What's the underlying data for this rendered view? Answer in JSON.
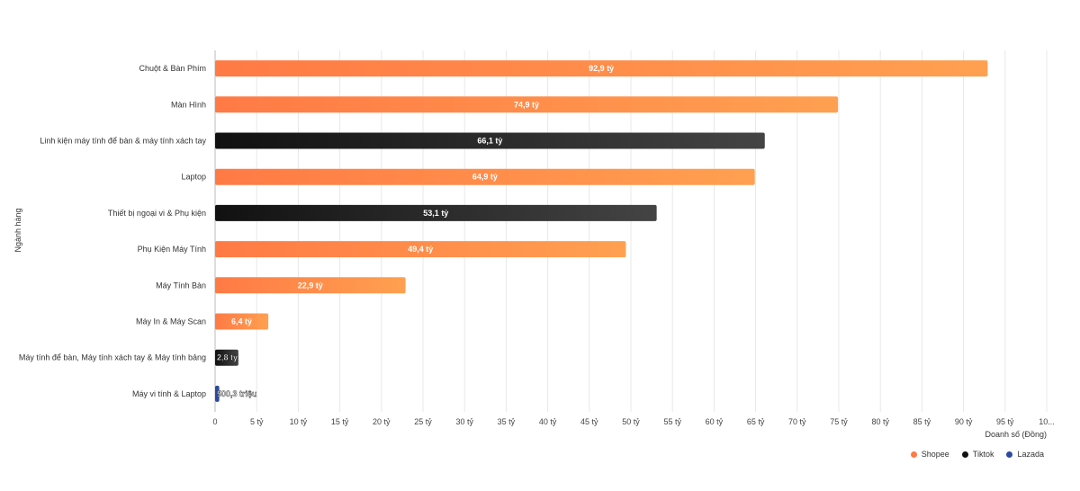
{
  "chart_data": {
    "type": "bar",
    "orientation": "horizontal",
    "title": "",
    "xlabel": "Doanh số (Đồng)",
    "ylabel": "Ngành hàng",
    "xlim": [
      0,
      100
    ],
    "x_unit": "tỷ",
    "x_ticks": [
      "0",
      "5 tỷ",
      "10 tỷ",
      "15 tỷ",
      "20 tỷ",
      "25 tỷ",
      "30 tỷ",
      "35 tỷ",
      "40 tỷ",
      "45 tỷ",
      "50 tỷ",
      "55 tỷ",
      "60 tỷ",
      "65 tỷ",
      "70 tỷ",
      "75 tỷ",
      "80 tỷ",
      "85 tỷ",
      "90 tỷ",
      "95 tỷ",
      "10..."
    ],
    "grid": "vertical",
    "legend_placement": "bottom-right",
    "series": [
      {
        "name": "Shopee",
        "color": "#ff7a45",
        "color_end": "#ffa050"
      },
      {
        "name": "Tiktok",
        "color": "#111111",
        "color_end": "#444444"
      },
      {
        "name": "Lazada",
        "color": "#2c4a9e",
        "color_end": "#2c4a9e"
      }
    ],
    "bars": [
      {
        "category": "Chuột & Bàn Phím",
        "value": 92.9,
        "series": "Shopee",
        "label": "92,9 tỷ"
      },
      {
        "category": "Màn Hình",
        "value": 74.9,
        "series": "Shopee",
        "label": "74,9 tỷ"
      },
      {
        "category": "Linh kiện máy tính để bàn & máy tính xách tay",
        "value": 66.1,
        "series": "Tiktok",
        "label": "66,1 tỷ"
      },
      {
        "category": "Laptop",
        "value": 64.9,
        "series": "Shopee",
        "label": "64,9 tỷ"
      },
      {
        "category": "Thiết bị ngoại vi & Phụ kiện",
        "value": 53.1,
        "series": "Tiktok",
        "label": "53,1 tỷ"
      },
      {
        "category": "Phụ Kiện Máy Tính",
        "value": 49.4,
        "series": "Shopee",
        "label": "49,4 tỷ"
      },
      {
        "category": "Máy Tính Bàn",
        "value": 22.9,
        "series": "Shopee",
        "label": "22,9 tỷ"
      },
      {
        "category": "Máy In & Máy Scan",
        "value": 6.4,
        "series": "Shopee",
        "label": "6,4 tỷ"
      },
      {
        "category": "Máy tính để bàn, Máy tính xách tay & Máy tính bảng",
        "value": 2.8,
        "series": "Tiktok",
        "label": "2,8 tỷ"
      },
      {
        "category": "Máy vi tính & Laptop",
        "value": 0.5,
        "series": "Lazada",
        "label": "500,3 triệu"
      }
    ]
  },
  "legend": [
    {
      "name": "Shopee",
      "color": "#ff7a45"
    },
    {
      "name": "Tiktok",
      "color": "#111111"
    },
    {
      "name": "Lazada",
      "color": "#2c4a9e"
    }
  ]
}
